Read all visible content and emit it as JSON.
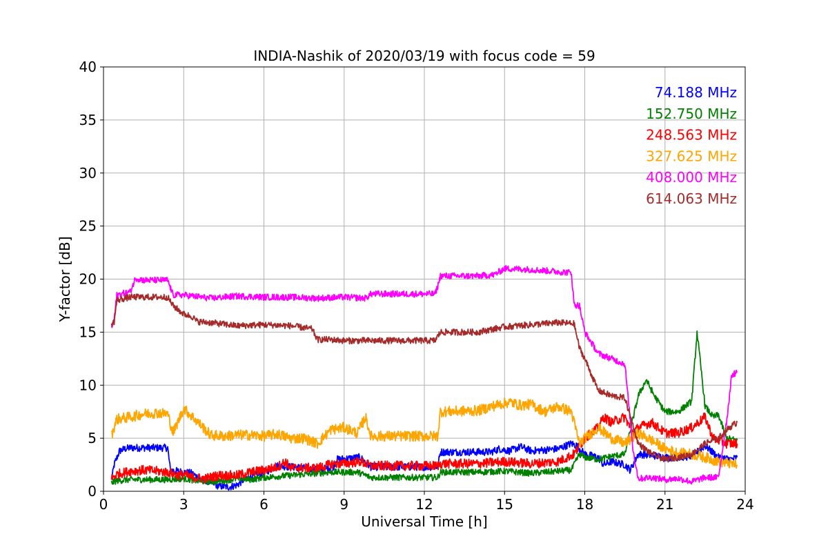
{
  "chart_data": {
    "type": "line",
    "title": "INDIA-Nashik of 2020/03/19 with focus code = 59",
    "xlabel": "Universal Time [h]",
    "ylabel": "Y-factor [dB]",
    "xlim": [
      0,
      24
    ],
    "ylim": [
      0,
      40
    ],
    "xticks": [
      0,
      3,
      6,
      9,
      12,
      15,
      18,
      21,
      24
    ],
    "yticks": [
      0,
      5,
      10,
      15,
      20,
      25,
      30,
      35,
      40
    ],
    "grid": true,
    "legend_position": "top-right",
    "series": [
      {
        "name": "74.188 MHz",
        "color": "#0000ff",
        "noise": 0.35,
        "points": [
          [
            0.3,
            1.0
          ],
          [
            0.4,
            2.5
          ],
          [
            0.6,
            3.8
          ],
          [
            0.8,
            4.0
          ],
          [
            1.0,
            4.1
          ],
          [
            1.5,
            4.1
          ],
          [
            2.0,
            4.1
          ],
          [
            2.4,
            4.1
          ],
          [
            2.5,
            2.0
          ],
          [
            3.0,
            1.8
          ],
          [
            3.3,
            1.7
          ],
          [
            3.6,
            1.2
          ],
          [
            4.0,
            0.9
          ],
          [
            4.3,
            0.5
          ],
          [
            4.7,
            0.4
          ],
          [
            5.0,
            0.6
          ],
          [
            5.3,
            1.2
          ],
          [
            5.8,
            1.6
          ],
          [
            6.2,
            2.0
          ],
          [
            6.5,
            2.4
          ],
          [
            7.0,
            2.3
          ],
          [
            7.5,
            2.2
          ],
          [
            8.0,
            2.0
          ],
          [
            8.6,
            2.3
          ],
          [
            8.7,
            3.0
          ],
          [
            9.2,
            3.1
          ],
          [
            9.6,
            3.2
          ],
          [
            10.0,
            2.3
          ],
          [
            11.0,
            2.3
          ],
          [
            12.0,
            2.3
          ],
          [
            12.5,
            2.3
          ],
          [
            12.6,
            3.7
          ],
          [
            13.5,
            3.7
          ],
          [
            14.5,
            3.7
          ],
          [
            14.8,
            4.0
          ],
          [
            15.2,
            3.8
          ],
          [
            15.6,
            4.2
          ],
          [
            16.0,
            3.8
          ],
          [
            16.5,
            3.9
          ],
          [
            17.0,
            4.0
          ],
          [
            17.5,
            4.5
          ],
          [
            17.7,
            4.3
          ],
          [
            18.0,
            3.5
          ],
          [
            18.5,
            3.2
          ],
          [
            18.7,
            2.5
          ],
          [
            19.0,
            2.8
          ],
          [
            19.5,
            2.5
          ],
          [
            19.7,
            2.0
          ],
          [
            20.0,
            3.5
          ],
          [
            20.5,
            3.4
          ],
          [
            21.0,
            3.2
          ],
          [
            21.5,
            3.2
          ],
          [
            22.0,
            3.3
          ],
          [
            22.5,
            4.3
          ],
          [
            23.0,
            3.2
          ],
          [
            23.5,
            3.0
          ],
          [
            23.7,
            3.2
          ]
        ]
      },
      {
        "name": "152.750 MHz",
        "color": "#008000",
        "noise": 0.3,
        "points": [
          [
            0.3,
            0.8
          ],
          [
            0.5,
            1.0
          ],
          [
            1.0,
            1.1
          ],
          [
            2.0,
            1.1
          ],
          [
            2.4,
            1.1
          ],
          [
            3.0,
            1.2
          ],
          [
            3.5,
            1.0
          ],
          [
            4.0,
            0.9
          ],
          [
            4.5,
            1.0
          ],
          [
            5.0,
            1.2
          ],
          [
            5.5,
            1.1
          ],
          [
            6.0,
            1.3
          ],
          [
            6.5,
            1.4
          ],
          [
            7.0,
            1.5
          ],
          [
            7.5,
            1.6
          ],
          [
            8.5,
            1.8
          ],
          [
            9.5,
            1.8
          ],
          [
            10.0,
            1.3
          ],
          [
            11.0,
            1.3
          ],
          [
            12.5,
            1.3
          ],
          [
            12.6,
            1.8
          ],
          [
            14.0,
            1.8
          ],
          [
            15.0,
            1.9
          ],
          [
            16.0,
            1.7
          ],
          [
            17.0,
            1.9
          ],
          [
            17.5,
            2.0
          ],
          [
            17.8,
            3.5
          ],
          [
            18.0,
            3.2
          ],
          [
            18.5,
            3.0
          ],
          [
            19.0,
            3.3
          ],
          [
            19.5,
            3.5
          ],
          [
            20.0,
            9.0
          ],
          [
            20.3,
            10.5
          ],
          [
            20.6,
            9.0
          ],
          [
            21.0,
            7.5
          ],
          [
            21.5,
            7.5
          ],
          [
            22.0,
            8.5
          ],
          [
            22.2,
            15.0
          ],
          [
            22.5,
            8.0
          ],
          [
            22.8,
            7.0
          ],
          [
            23.0,
            7.2
          ],
          [
            23.3,
            5.0
          ],
          [
            23.7,
            4.8
          ]
        ]
      },
      {
        "name": "248.563 MHz",
        "color": "#ff0000",
        "noise": 0.45,
        "points": [
          [
            0.3,
            1.2
          ],
          [
            0.5,
            1.6
          ],
          [
            1.0,
            1.9
          ],
          [
            1.5,
            2.0
          ],
          [
            2.0,
            1.9
          ],
          [
            2.4,
            1.8
          ],
          [
            2.8,
            1.5
          ],
          [
            3.0,
            1.6
          ],
          [
            3.3,
            1.3
          ],
          [
            3.8,
            1.2
          ],
          [
            4.3,
            1.5
          ],
          [
            5.0,
            1.5
          ],
          [
            5.5,
            1.8
          ],
          [
            6.0,
            2.0
          ],
          [
            6.5,
            2.3
          ],
          [
            6.8,
            2.8
          ],
          [
            7.0,
            2.2
          ],
          [
            8.0,
            2.2
          ],
          [
            8.6,
            2.6
          ],
          [
            9.0,
            2.6
          ],
          [
            9.6,
            2.8
          ],
          [
            10.0,
            2.4
          ],
          [
            11.0,
            2.4
          ],
          [
            12.5,
            2.4
          ],
          [
            12.6,
            2.6
          ],
          [
            14.0,
            2.6
          ],
          [
            15.0,
            2.8
          ],
          [
            16.0,
            2.6
          ],
          [
            17.0,
            2.8
          ],
          [
            17.6,
            3.5
          ],
          [
            18.0,
            5.0
          ],
          [
            18.5,
            6.0
          ],
          [
            18.7,
            7.0
          ],
          [
            19.0,
            6.5
          ],
          [
            19.5,
            7.0
          ],
          [
            19.8,
            5.5
          ],
          [
            20.0,
            6.0
          ],
          [
            20.5,
            6.5
          ],
          [
            21.0,
            5.5
          ],
          [
            21.5,
            5.5
          ],
          [
            22.0,
            6.0
          ],
          [
            22.5,
            7.0
          ],
          [
            22.8,
            5.0
          ],
          [
            23.3,
            4.5
          ],
          [
            23.7,
            4.5
          ]
        ]
      },
      {
        "name": "327.625 MHz",
        "color": "#ffa500",
        "noise": 0.5,
        "points": [
          [
            0.3,
            5.3
          ],
          [
            0.5,
            6.8
          ],
          [
            1.0,
            7.0
          ],
          [
            1.5,
            7.3
          ],
          [
            2.0,
            7.4
          ],
          [
            2.4,
            7.3
          ],
          [
            2.6,
            5.5
          ],
          [
            3.0,
            7.8
          ],
          [
            3.5,
            6.6
          ],
          [
            4.0,
            5.3
          ],
          [
            4.5,
            5.2
          ],
          [
            5.0,
            5.3
          ],
          [
            5.5,
            5.3
          ],
          [
            6.0,
            5.2
          ],
          [
            6.5,
            5.4
          ],
          [
            7.0,
            5.0
          ],
          [
            7.5,
            5.0
          ],
          [
            8.0,
            4.5
          ],
          [
            8.5,
            5.8
          ],
          [
            9.0,
            6.0
          ],
          [
            9.5,
            5.5
          ],
          [
            9.8,
            7.0
          ],
          [
            10.0,
            5.2
          ],
          [
            11.0,
            5.2
          ],
          [
            12.5,
            5.2
          ],
          [
            12.6,
            7.5
          ],
          [
            14.0,
            7.6
          ],
          [
            14.8,
            8.2
          ],
          [
            15.2,
            8.4
          ],
          [
            15.6,
            8.1
          ],
          [
            16.0,
            8.2
          ],
          [
            16.5,
            7.5
          ],
          [
            17.0,
            8.0
          ],
          [
            17.5,
            7.5
          ],
          [
            17.8,
            4.5
          ],
          [
            18.0,
            5.0
          ],
          [
            18.5,
            6.0
          ],
          [
            19.0,
            5.0
          ],
          [
            19.5,
            4.5
          ],
          [
            20.0,
            5.5
          ],
          [
            20.5,
            4.8
          ],
          [
            21.0,
            4.0
          ],
          [
            21.5,
            3.6
          ],
          [
            22.0,
            3.5
          ],
          [
            22.5,
            3.2
          ],
          [
            23.0,
            2.8
          ],
          [
            23.7,
            2.5
          ]
        ]
      },
      {
        "name": "408.000 MHz",
        "color": "#ff00ff",
        "noise": 0.3,
        "points": [
          [
            0.3,
            15.3
          ],
          [
            0.4,
            16.2
          ],
          [
            0.5,
            18.5
          ],
          [
            1.0,
            18.8
          ],
          [
            1.2,
            20.1
          ],
          [
            1.5,
            19.9
          ],
          [
            2.0,
            19.9
          ],
          [
            2.4,
            19.9
          ],
          [
            2.6,
            18.5
          ],
          [
            3.0,
            18.5
          ],
          [
            4.0,
            18.2
          ],
          [
            5.0,
            18.4
          ],
          [
            6.0,
            18.3
          ],
          [
            7.0,
            18.3
          ],
          [
            8.0,
            18.2
          ],
          [
            9.0,
            18.3
          ],
          [
            9.8,
            18.2
          ],
          [
            10.0,
            18.6
          ],
          [
            11.0,
            18.6
          ],
          [
            12.4,
            18.6
          ],
          [
            12.5,
            19.3
          ],
          [
            12.6,
            20.3
          ],
          [
            14.0,
            20.3
          ],
          [
            14.6,
            20.4
          ],
          [
            15.0,
            21.0
          ],
          [
            16.0,
            20.9
          ],
          [
            17.0,
            20.7
          ],
          [
            17.5,
            20.6
          ],
          [
            17.6,
            17.6
          ],
          [
            17.8,
            17.5
          ],
          [
            18.0,
            15.0
          ],
          [
            18.5,
            13.0
          ],
          [
            19.0,
            12.5
          ],
          [
            19.5,
            12.0
          ],
          [
            19.8,
            4.0
          ],
          [
            20.0,
            1.2
          ],
          [
            20.5,
            1.3
          ],
          [
            21.0,
            1.1
          ],
          [
            21.5,
            1.2
          ],
          [
            22.0,
            0.9
          ],
          [
            22.5,
            1.3
          ],
          [
            23.0,
            1.3
          ],
          [
            23.3,
            6.5
          ],
          [
            23.5,
            11.0
          ],
          [
            23.7,
            11.2
          ]
        ]
      },
      {
        "name": "614.063 MHz",
        "color": "#a52a2a",
        "noise": 0.3,
        "points": [
          [
            0.3,
            15.8
          ],
          [
            0.4,
            16.0
          ],
          [
            0.5,
            18.0
          ],
          [
            1.0,
            18.3
          ],
          [
            1.5,
            18.3
          ],
          [
            2.0,
            18.3
          ],
          [
            2.4,
            18.3
          ],
          [
            2.6,
            17.5
          ],
          [
            3.0,
            16.7
          ],
          [
            3.3,
            16.5
          ],
          [
            3.5,
            16.0
          ],
          [
            4.0,
            15.9
          ],
          [
            5.0,
            15.6
          ],
          [
            6.0,
            15.7
          ],
          [
            7.0,
            15.6
          ],
          [
            7.8,
            15.3
          ],
          [
            8.0,
            14.3
          ],
          [
            8.5,
            14.3
          ],
          [
            9.0,
            14.2
          ],
          [
            10.0,
            14.2
          ],
          [
            11.0,
            14.2
          ],
          [
            12.4,
            14.2
          ],
          [
            12.6,
            15.0
          ],
          [
            14.0,
            15.0
          ],
          [
            15.0,
            15.5
          ],
          [
            16.0,
            15.7
          ],
          [
            17.0,
            15.9
          ],
          [
            17.6,
            15.8
          ],
          [
            17.8,
            13.5
          ],
          [
            18.0,
            12.5
          ],
          [
            18.5,
            9.5
          ],
          [
            19.0,
            9.0
          ],
          [
            19.5,
            8.8
          ],
          [
            20.0,
            4.5
          ],
          [
            20.5,
            3.5
          ],
          [
            21.0,
            3.0
          ],
          [
            21.5,
            3.2
          ],
          [
            22.0,
            3.5
          ],
          [
            22.5,
            4.5
          ],
          [
            23.0,
            5.0
          ],
          [
            23.4,
            6.0
          ],
          [
            23.7,
            6.5
          ]
        ]
      }
    ]
  }
}
